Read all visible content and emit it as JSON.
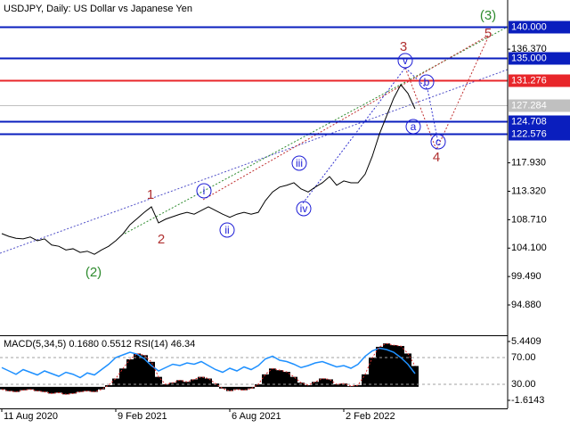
{
  "chart_data": {
    "type": "line",
    "title": "USDJPY, Daily:  US Dollar vs Japanese Yen",
    "categories": [
      "11 Aug 2020",
      null,
      null,
      null,
      null,
      null,
      null,
      null,
      null,
      null,
      null,
      null,
      null,
      null,
      null,
      null,
      "9 Feb 2021",
      null,
      null,
      null,
      null,
      null,
      null,
      null,
      null,
      null,
      null,
      null,
      null,
      null,
      null,
      null,
      "6 Aug 2021",
      null,
      null,
      null,
      null,
      null,
      null,
      null,
      null,
      null,
      null,
      null,
      null,
      null,
      null,
      null,
      "2 Feb 2022",
      null,
      null,
      null,
      null,
      null,
      null,
      null,
      null,
      null,
      null
    ],
    "values": [
      106.45,
      106.0,
      105.7,
      105.6,
      105.9,
      105.3,
      105.6,
      104.6,
      104.4,
      103.8,
      104.0,
      103.4,
      103.6,
      103.1,
      103.8,
      104.4,
      105.3,
      106.4,
      107.9,
      108.9,
      109.9,
      110.8,
      108.2,
      108.8,
      109.2,
      109.6,
      109.9,
      109.6,
      110.2,
      110.8,
      110.2,
      109.6,
      109.1,
      109.6,
      109.9,
      109.6,
      109.9,
      111.8,
      113.2,
      114.0,
      114.3,
      114.7,
      113.7,
      113.2,
      114.0,
      114.7,
      115.7,
      114.3,
      115.0,
      114.7,
      114.7,
      116.1,
      119.0,
      122.6,
      125.5,
      128.4,
      130.6,
      129.2,
      126.7
    ],
    "color": "#000000",
    "ylim": [
      90.11,
      144.34
    ],
    "yticks": [
      {
        "value": 136.37,
        "label": "136.370"
      },
      {
        "value": 117.93,
        "label": "117.930"
      },
      {
        "value": 113.32,
        "label": "113.320"
      },
      {
        "value": 108.71,
        "label": "108.710"
      },
      {
        "value": 104.1,
        "label": "104.100"
      },
      {
        "value": 99.49,
        "label": "99.490"
      },
      {
        "value": 94.88,
        "label": "94.880"
      }
    ],
    "levels": [
      {
        "value": 140,
        "label": "140.000",
        "color": "#0a1ebe"
      },
      {
        "value": 135,
        "label": "135.000",
        "color": "#0a1ebe"
      },
      {
        "value": 131.276,
        "label": "131.276",
        "color": "#e8262a"
      },
      {
        "value": 127.284,
        "label": "127.284",
        "color": "#c0c0c0"
      },
      {
        "value": 124.708,
        "label": "124.708",
        "color": "#0a1ebe"
      },
      {
        "value": 122.576,
        "label": "122.576",
        "color": "#0a1ebe"
      }
    ],
    "annotations": [
      {
        "text": "(3)",
        "color": "#2e8b2e",
        "circled": false
      },
      {
        "text": "5",
        "color": "#b03030",
        "circled": false
      },
      {
        "text": "3",
        "color": "#b03030",
        "circled": false
      },
      {
        "text": "v",
        "color": "#1c1cd6",
        "circled": true
      },
      {
        "text": "b",
        "color": "#1c1cd6",
        "circled": true
      },
      {
        "text": "a",
        "color": "#1c1cd6",
        "circled": true
      },
      {
        "text": "c",
        "color": "#1c1cd6",
        "circled": true
      },
      {
        "text": "4",
        "color": "#b03030",
        "circled": false
      },
      {
        "text": "1",
        "color": "#b03030",
        "circled": false
      },
      {
        "text": "2",
        "color": "#b03030",
        "circled": false
      },
      {
        "text": "i",
        "color": "#1c1cd6",
        "circled": true
      },
      {
        "text": "ii",
        "color": "#1c1cd6",
        "circled": true
      },
      {
        "text": "iii",
        "color": "#1c1cd6",
        "circled": true
      },
      {
        "text": "iv",
        "color": "#1c1cd6",
        "circled": true
      },
      {
        "text": "(2)",
        "color": "#2e8b2e",
        "circled": false
      }
    ],
    "indicator": {
      "title": "MACD(5,34,5) 0.1680 0.5512 RSI(14) 46.34",
      "macd": {
        "color": "#000000",
        "ylim": [
          -2.58,
          6.08
        ],
        "yticks": [
          5.4409,
          -1.6143
        ],
        "values": [
          -0.3,
          -0.5,
          -0.6,
          -0.4,
          -0.3,
          -0.5,
          -0.6,
          -0.8,
          -0.7,
          -0.9,
          -0.8,
          -0.6,
          -0.5,
          -0.6,
          -0.3,
          0.2,
          1.0,
          2.2,
          3.3,
          4.0,
          3.8,
          3.0,
          1.2,
          0.3,
          0.5,
          0.8,
          0.6,
          0.9,
          1.2,
          1.0,
          0.4,
          -0.2,
          -0.5,
          -0.3,
          -0.4,
          -0.2,
          0.3,
          1.5,
          2.2,
          2.0,
          1.8,
          1.2,
          0.5,
          0.2,
          0.6,
          1.0,
          0.9,
          0.3,
          0.4,
          0.1,
          0.2,
          1.5,
          3.5,
          4.8,
          5.2,
          5.0,
          4.9,
          4.0,
          2.5
        ]
      },
      "rsi": {
        "color": "#1e90ff",
        "ylim": [
          -6,
          102
        ],
        "yticks": [
          {
            "value": 70,
            "label": "70.00"
          },
          {
            "value": 30,
            "label": "30.00"
          }
        ],
        "values": [
          55,
          50,
          45,
          52,
          48,
          44,
          50,
          46,
          42,
          48,
          45,
          40,
          47,
          44,
          52,
          60,
          70,
          74,
          78,
          75,
          68,
          58,
          50,
          55,
          60,
          58,
          62,
          60,
          64,
          58,
          52,
          48,
          54,
          50,
          56,
          52,
          58,
          68,
          72,
          66,
          64,
          60,
          55,
          58,
          62,
          64,
          60,
          56,
          58,
          54,
          60,
          72,
          80,
          84,
          82,
          78,
          70,
          60,
          46
        ]
      }
    }
  }
}
